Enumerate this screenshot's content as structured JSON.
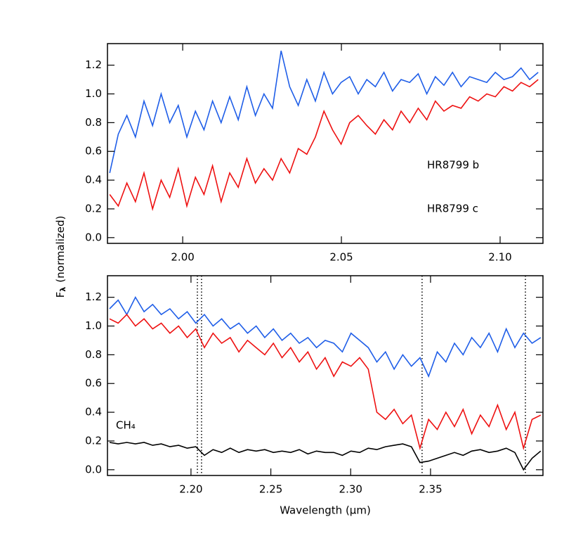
{
  "figure": {
    "y_label": {
      "symbol": "F",
      "subscript": "λ",
      "text": "(normalized)"
    }
  },
  "chart_data": [
    {
      "type": "line",
      "x": [
        1.977,
        1.9797,
        1.9824,
        1.9851,
        1.9878,
        1.9905,
        1.9932,
        1.9959,
        1.9986,
        2.0013,
        2.004,
        2.0067,
        2.0094,
        2.0121,
        2.0148,
        2.0175,
        2.0202,
        2.0229,
        2.0256,
        2.0283,
        2.031,
        2.0337,
        2.0364,
        2.0391,
        2.0418,
        2.0445,
        2.0472,
        2.0499,
        2.0526,
        2.0553,
        2.058,
        2.0607,
        2.0634,
        2.0661,
        2.0688,
        2.0715,
        2.0742,
        2.0769,
        2.0796,
        2.0823,
        2.085,
        2.0877,
        2.0904,
        2.0931,
        2.0958,
        2.0985,
        2.1012,
        2.1039,
        2.1066,
        2.1093,
        2.112
      ],
      "series": [
        {
          "name": "HR8799 c",
          "color": "#1f5ee8",
          "values": [
            0.45,
            0.72,
            0.85,
            0.7,
            0.95,
            0.78,
            1.0,
            0.8,
            0.92,
            0.7,
            0.88,
            0.75,
            0.95,
            0.8,
            0.98,
            0.82,
            1.05,
            0.85,
            1.0,
            0.9,
            1.3,
            1.05,
            0.92,
            1.1,
            0.95,
            1.15,
            1.0,
            1.08,
            1.12,
            1.0,
            1.1,
            1.05,
            1.15,
            1.02,
            1.1,
            1.08,
            1.14,
            1.0,
            1.12,
            1.06,
            1.15,
            1.05,
            1.12,
            1.1,
            1.08,
            1.15,
            1.1,
            1.12,
            1.18,
            1.1,
            1.15
          ]
        },
        {
          "name": "HR8799 b",
          "color": "#ee1111",
          "values": [
            0.3,
            0.22,
            0.38,
            0.25,
            0.45,
            0.2,
            0.4,
            0.28,
            0.48,
            0.22,
            0.42,
            0.3,
            0.5,
            0.25,
            0.45,
            0.35,
            0.55,
            0.38,
            0.48,
            0.4,
            0.55,
            0.45,
            0.62,
            0.58,
            0.7,
            0.88,
            0.75,
            0.65,
            0.8,
            0.85,
            0.78,
            0.72,
            0.82,
            0.75,
            0.88,
            0.8,
            0.9,
            0.82,
            0.95,
            0.88,
            0.92,
            0.9,
            0.98,
            0.95,
            1.0,
            0.98,
            1.05,
            1.02,
            1.08,
            1.05,
            1.1
          ]
        }
      ],
      "xlim": [
        1.9763,
        2.1135
      ],
      "ylim": [
        -0.04,
        1.35
      ],
      "xticks": [
        {
          "value": 2.0,
          "label": "2.00"
        },
        {
          "value": 2.05,
          "label": "2.05"
        },
        {
          "value": 2.1,
          "label": "2.10"
        }
      ],
      "yticks": [
        {
          "value": 0,
          "label": "0.0"
        },
        0.2,
        0.4,
        0.6,
        0.8,
        {
          "value": 1,
          "label": "1.0"
        },
        1.2
      ]
    },
    {
      "type": "line",
      "x": [
        2.149,
        2.1544,
        2.1598,
        2.1652,
        2.1706,
        2.176,
        2.1814,
        2.1868,
        2.1922,
        2.1976,
        2.203,
        2.2084,
        2.2138,
        2.2192,
        2.2246,
        2.23,
        2.2354,
        2.2408,
        2.2462,
        2.2516,
        2.257,
        2.2624,
        2.2678,
        2.2732,
        2.2786,
        2.284,
        2.2894,
        2.2948,
        2.3002,
        2.3056,
        2.311,
        2.3164,
        2.3218,
        2.3272,
        2.3326,
        2.338,
        2.3434,
        2.3488,
        2.3542,
        2.3596,
        2.365,
        2.3704,
        2.3758,
        2.3812,
        2.3866,
        2.392,
        2.3974,
        2.4028,
        2.4082,
        2.4136,
        2.419
      ],
      "series": [
        {
          "name": "HR8799 c",
          "color": "#1f5ee8",
          "values": [
            1.12,
            1.18,
            1.08,
            1.2,
            1.1,
            1.15,
            1.08,
            1.12,
            1.05,
            1.1,
            1.02,
            1.08,
            1.0,
            1.05,
            0.98,
            1.02,
            0.95,
            1.0,
            0.92,
            0.98,
            0.9,
            0.95,
            0.88,
            0.92,
            0.85,
            0.9,
            0.88,
            0.82,
            0.95,
            0.9,
            0.85,
            0.75,
            0.82,
            0.7,
            0.8,
            0.72,
            0.78,
            0.65,
            0.82,
            0.75,
            0.88,
            0.8,
            0.92,
            0.85,
            0.95,
            0.82,
            0.98,
            0.85,
            0.95,
            0.88,
            0.92
          ]
        },
        {
          "name": "HR8799 b",
          "color": "#ee1111",
          "values": [
            1.05,
            1.02,
            1.08,
            1.0,
            1.05,
            0.98,
            1.02,
            0.95,
            1.0,
            0.92,
            0.98,
            0.85,
            0.95,
            0.88,
            0.92,
            0.82,
            0.9,
            0.85,
            0.8,
            0.88,
            0.78,
            0.85,
            0.75,
            0.82,
            0.7,
            0.78,
            0.65,
            0.75,
            0.72,
            0.78,
            0.7,
            0.4,
            0.35,
            0.42,
            0.32,
            0.38,
            0.15,
            0.35,
            0.28,
            0.4,
            0.3,
            0.42,
            0.25,
            0.38,
            0.3,
            0.45,
            0.28,
            0.4,
            0.15,
            0.35,
            0.38
          ]
        },
        {
          "name": "CH₄",
          "color": "#000000",
          "values": [
            0.19,
            0.18,
            0.19,
            0.18,
            0.19,
            0.17,
            0.18,
            0.16,
            0.17,
            0.15,
            0.16,
            0.1,
            0.14,
            0.12,
            0.15,
            0.12,
            0.14,
            0.13,
            0.14,
            0.12,
            0.13,
            0.12,
            0.14,
            0.11,
            0.13,
            0.12,
            0.12,
            0.1,
            0.13,
            0.12,
            0.15,
            0.14,
            0.16,
            0.17,
            0.18,
            0.16,
            0.05,
            0.06,
            0.08,
            0.1,
            0.12,
            0.1,
            0.13,
            0.14,
            0.12,
            0.13,
            0.15,
            0.12,
            0.0,
            0.08,
            0.13
          ]
        }
      ],
      "vlines": [
        2.204,
        2.2066,
        2.3447,
        2.4094
      ],
      "xlim": [
        2.1477,
        2.4204
      ],
      "ylim": [
        -0.04,
        1.35
      ],
      "xticks": [
        {
          "value": 2.2,
          "label": "2.20"
        },
        {
          "value": 2.25,
          "label": "2.25"
        },
        {
          "value": 2.3,
          "label": "2.30"
        },
        {
          "value": 2.35,
          "label": "2.35"
        }
      ],
      "yticks": [
        {
          "value": 0,
          "label": "0.0"
        },
        0.2,
        0.4,
        0.6,
        0.8,
        {
          "value": 1,
          "label": "1.0"
        },
        1.2
      ],
      "x_label": "Wavelength (μm)"
    }
  ]
}
